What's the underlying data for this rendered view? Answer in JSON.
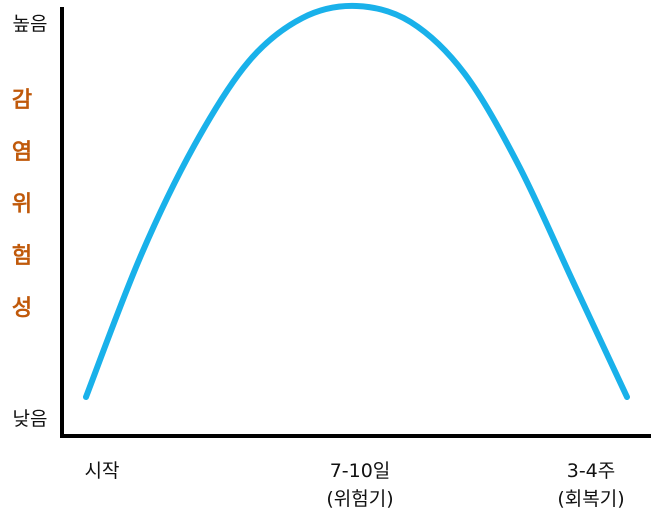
{
  "chart_data": {
    "type": "line",
    "title": "",
    "ylabel": "감염위험성",
    "ylabel_chars": [
      "감",
      "염",
      "위",
      "험",
      "성"
    ],
    "y_ticks": {
      "high": "높음",
      "low": "낮음"
    },
    "x_ticks": [
      {
        "lines": [
          "시작"
        ]
      },
      {
        "lines": [
          "7-10일",
          "(위험기)"
        ]
      },
      {
        "lines": [
          "3-4주",
          "(회복기)"
        ]
      }
    ],
    "series": [
      {
        "x": [
          0.0,
          0.1,
          0.2,
          0.3,
          0.4,
          0.5,
          0.6,
          0.7,
          0.8,
          0.9,
          1.0
        ],
        "y": [
          0.02,
          0.37,
          0.65,
          0.86,
          0.97,
          1.0,
          0.96,
          0.83,
          0.6,
          0.31,
          0.02
        ]
      }
    ],
    "line_color": "#19b1ea",
    "ylabel_color": "#c0590a",
    "grid": false
  }
}
